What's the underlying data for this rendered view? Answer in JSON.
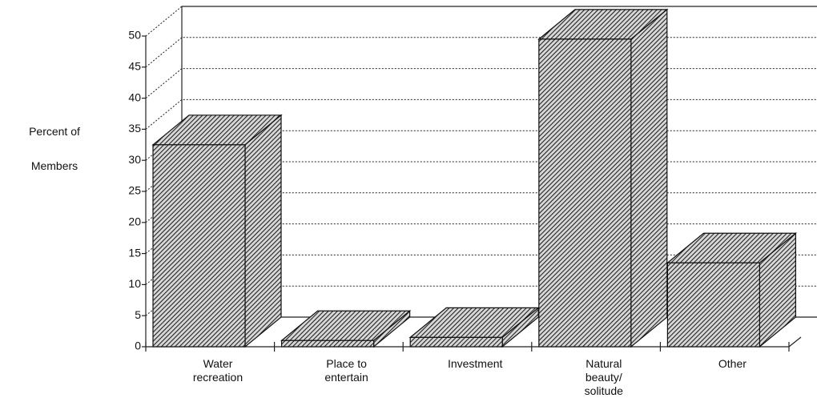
{
  "chart_data": {
    "type": "bar3d",
    "y_label": "Percent of\nMembers",
    "categories": [
      "Water\nrecreation",
      "Place to\nentertain",
      "Investment",
      "Natural\nbeauty/\nsolitude",
      "Other"
    ],
    "values": [
      32.5,
      1,
      1.5,
      49.5,
      13.5
    ],
    "color": "#555555",
    "ylim": [
      0,
      50
    ],
    "yticks": [
      0,
      5,
      10,
      15,
      20,
      25,
      30,
      35,
      40,
      45,
      50
    ],
    "grid": true
  }
}
